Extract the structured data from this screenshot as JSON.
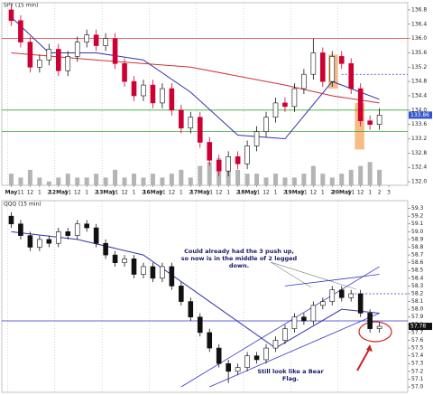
{
  "chart_data": [
    {
      "type": "candlestick",
      "title": "SPY (15 min)",
      "xlim": [
        0,
        43
      ],
      "xticks": [
        {
          "value": 1,
          "label": "May"
        },
        {
          "value": 2,
          "label": "11"
        },
        {
          "value": 3,
          "label": "12"
        },
        {
          "value": 4,
          "label": "1"
        },
        {
          "value": 5,
          "label": "2"
        },
        {
          "value": 6,
          "label": "12May"
        },
        {
          "value": 7,
          "label": "11"
        },
        {
          "value": 8,
          "label": "12"
        },
        {
          "value": 9,
          "label": "1"
        },
        {
          "value": 10,
          "label": "2"
        },
        {
          "value": 11,
          "label": "13May"
        },
        {
          "value": 12,
          "label": "11"
        },
        {
          "value": 13,
          "label": "12"
        },
        {
          "value": 14,
          "label": "1"
        },
        {
          "value": 15,
          "label": "2"
        },
        {
          "value": 16,
          "label": "16May"
        },
        {
          "value": 17,
          "label": "11"
        },
        {
          "value": 18,
          "label": "12"
        },
        {
          "value": 19,
          "label": "1"
        },
        {
          "value": 20,
          "label": "2"
        },
        {
          "value": 21,
          "label": "17May"
        },
        {
          "value": 22,
          "label": "11"
        },
        {
          "value": 23,
          "label": "12"
        },
        {
          "value": 24,
          "label": "1"
        },
        {
          "value": 25,
          "label": "2"
        },
        {
          "value": 26,
          "label": "18May"
        },
        {
          "value": 27,
          "label": "11"
        },
        {
          "value": 28,
          "label": "12"
        },
        {
          "value": 29,
          "label": "1"
        },
        {
          "value": 30,
          "label": "2"
        },
        {
          "value": 31,
          "label": "19May"
        },
        {
          "value": 32,
          "label": "11"
        },
        {
          "value": 33,
          "label": "12"
        },
        {
          "value": 34,
          "label": "1"
        },
        {
          "value": 35,
          "label": "2"
        },
        {
          "value": 36,
          "label": "20May"
        },
        {
          "value": 37,
          "label": "11"
        },
        {
          "value": 38,
          "label": "12"
        },
        {
          "value": 39,
          "label": "1"
        },
        {
          "value": 40,
          "label": "2"
        },
        {
          "value": 41,
          "label": "3"
        }
      ],
      "ylim": [
        131.9,
        137.0
      ],
      "yticks": [
        {
          "value": 132,
          "label": "132.0"
        },
        132.4,
        132.8,
        133.2,
        133.6,
        {
          "value": 134,
          "label": "134.0"
        },
        134.4,
        134.8,
        135.2,
        135.6,
        {
          "value": 136,
          "label": "136.0"
        },
        136.4,
        136.8
      ],
      "up_color": "#ffffff",
      "down_color": "#cc0033",
      "open": [
        136.8,
        136.5,
        135.9,
        135.2,
        135.4,
        135.7,
        135.1,
        135.5,
        135.9,
        136.1,
        135.8,
        136.0,
        135.3,
        134.8,
        134.4,
        134.7,
        134.2,
        134.6,
        134.0,
        133.5,
        133.8,
        133.1,
        132.6,
        132.3,
        132.7,
        132.5,
        133.0,
        133.4,
        133.8,
        134.2,
        134.1,
        134.6,
        135.0,
        135.6,
        134.8,
        135.5,
        135.3,
        134.6,
        133.7,
        133.6
      ],
      "high": [
        136.95,
        136.65,
        136.05,
        135.55,
        135.85,
        135.85,
        135.65,
        136.05,
        136.25,
        136.25,
        136.15,
        136.15,
        135.45,
        134.95,
        134.85,
        134.85,
        134.75,
        134.75,
        134.15,
        133.95,
        133.95,
        133.25,
        132.75,
        132.85,
        132.85,
        133.15,
        133.55,
        133.95,
        134.35,
        134.35,
        134.75,
        135.15,
        136.0,
        135.75,
        135.65,
        135.65,
        135.45,
        134.75,
        133.85,
        134.05
      ],
      "low": [
        136.35,
        135.75,
        135.05,
        135.05,
        135.25,
        134.95,
        134.95,
        135.35,
        135.75,
        135.65,
        135.65,
        135.15,
        134.65,
        134.25,
        134.25,
        134.05,
        134.05,
        133.85,
        133.35,
        133.35,
        132.95,
        132.45,
        132.15,
        132.15,
        132.35,
        132.35,
        132.85,
        133.25,
        133.65,
        133.95,
        133.95,
        134.45,
        134.85,
        134.65,
        134.65,
        135.15,
        134.45,
        133.55,
        133.45,
        133.45
      ],
      "close": [
        136.5,
        135.9,
        135.2,
        135.4,
        135.7,
        135.1,
        135.5,
        135.9,
        136.1,
        135.8,
        136.0,
        135.3,
        134.8,
        134.4,
        134.7,
        134.2,
        134.6,
        134.0,
        133.5,
        133.8,
        133.1,
        132.6,
        132.3,
        132.7,
        132.5,
        133.0,
        133.4,
        133.8,
        134.2,
        134.1,
        134.6,
        135.0,
        135.6,
        134.8,
        135.5,
        135.3,
        134.6,
        133.7,
        133.6,
        133.86
      ],
      "volume": {
        "color": "#b4b4b4",
        "ylim": [
          0,
          14
        ],
        "values": [
          3,
          2,
          4,
          2,
          1,
          2,
          3,
          2,
          2,
          3,
          2,
          4,
          2,
          3,
          2,
          3,
          2,
          3,
          4,
          2,
          5,
          6,
          7,
          5,
          4,
          3,
          3,
          2,
          3,
          2,
          2,
          3,
          5,
          3,
          2,
          3,
          4,
          5,
          6,
          4
        ]
      },
      "moving_averages": [
        {
          "color": "#3333aa",
          "x": [
            1,
            5,
            10,
            15,
            20,
            25,
            30,
            35,
            40
          ],
          "values": [
            136.6,
            135.6,
            135.6,
            135.4,
            134.5,
            133.3,
            133.2,
            134.8,
            134.3
          ]
        },
        {
          "color": "#cc3333",
          "x": [
            1,
            10,
            20,
            30,
            35,
            40
          ],
          "values": [
            135.6,
            135.4,
            135.2,
            134.7,
            134.4,
            134.2
          ]
        }
      ],
      "hlines": [
        {
          "value": 136.0,
          "color": "#dd3333"
        },
        {
          "value": 134.0,
          "color": "#33aa33"
        },
        {
          "value": 133.4,
          "color": "#33aa33"
        },
        {
          "value": 135.0,
          "color": "#3333cc",
          "dashed": true,
          "from": 36
        }
      ],
      "highlights": [
        {
          "color": "#f4b070",
          "x": [
            34.6,
            35.6
          ],
          "y": [
            134.6,
            135.55
          ]
        },
        {
          "color": "#f4b070",
          "x": [
            37.4,
            38.4
          ],
          "y": [
            132.9,
            134.2
          ]
        }
      ]
    },
    {
      "type": "candlestick",
      "title": "QQQ (15 min)",
      "xlim": [
        0,
        43
      ],
      "ylim": [
        56.93,
        59.4
      ],
      "yticks": [
        {
          "value": 57,
          "label": "57.0"
        },
        57.1,
        57.2,
        57.3,
        57.4,
        57.5,
        57.6,
        57.7,
        57.8,
        57.9,
        {
          "value": 58,
          "label": "58.0"
        },
        58.1,
        58.2,
        58.3,
        58.4,
        58.5,
        58.6,
        58.7,
        58.8,
        58.9,
        {
          "value": 59,
          "label": "59.0"
        },
        59.1,
        59.2,
        59.3
      ],
      "up_color": "#ffffff",
      "down_color": "#111111",
      "open": [
        59.2,
        59.1,
        58.95,
        58.8,
        58.9,
        58.85,
        59.0,
        58.95,
        59.1,
        59.05,
        58.85,
        58.7,
        58.6,
        58.65,
        58.45,
        58.55,
        58.4,
        58.55,
        58.3,
        58.1,
        57.9,
        57.7,
        57.5,
        57.3,
        57.2,
        57.25,
        57.4,
        57.35,
        57.5,
        57.6,
        57.75,
        57.9,
        57.85,
        58.05,
        58.1,
        58.25,
        58.15,
        58.2,
        57.95,
        57.75
      ],
      "high": [
        59.25,
        59.15,
        59.0,
        58.95,
        58.95,
        59.05,
        59.05,
        59.15,
        59.15,
        59.1,
        58.9,
        58.75,
        58.7,
        58.7,
        58.6,
        58.6,
        58.6,
        58.6,
        58.35,
        58.15,
        57.95,
        57.75,
        57.55,
        57.35,
        57.3,
        57.45,
        57.45,
        57.55,
        57.65,
        57.8,
        57.95,
        57.95,
        58.1,
        58.15,
        58.3,
        58.3,
        58.25,
        58.25,
        58.0,
        57.83
      ],
      "low": [
        59.05,
        58.9,
        58.75,
        58.75,
        58.8,
        58.8,
        58.9,
        58.9,
        59.0,
        58.8,
        58.65,
        58.55,
        58.55,
        58.4,
        58.4,
        58.35,
        58.35,
        58.25,
        58.05,
        57.85,
        57.65,
        57.45,
        57.25,
        57.05,
        57.15,
        57.2,
        57.3,
        57.3,
        57.45,
        57.55,
        57.7,
        57.8,
        57.8,
        58.0,
        58.05,
        58.1,
        58.1,
        57.9,
        57.7,
        57.7
      ],
      "close": [
        59.1,
        58.95,
        58.8,
        58.9,
        58.85,
        59.0,
        58.95,
        59.1,
        59.05,
        58.85,
        58.7,
        58.6,
        58.65,
        58.45,
        58.55,
        58.4,
        58.55,
        58.3,
        58.1,
        57.9,
        57.7,
        57.5,
        57.3,
        57.2,
        57.25,
        57.4,
        57.35,
        57.5,
        57.6,
        57.75,
        57.9,
        57.85,
        58.05,
        58.1,
        58.25,
        58.15,
        58.2,
        57.95,
        57.75,
        57.78
      ],
      "moving_averages": [
        {
          "color": "#3333aa",
          "x": [
            1,
            8,
            15,
            22,
            29,
            36,
            40
          ],
          "values": [
            59.0,
            58.9,
            58.7,
            58.1,
            57.5,
            58.0,
            57.95
          ]
        }
      ],
      "hlines": [
        {
          "value": 57.85,
          "color": "#3333cc"
        },
        {
          "value": 58.2,
          "color": "#3333cc",
          "dashed": true,
          "from": 37
        }
      ],
      "trendlines": [
        {
          "color": "#3333cc",
          "x": [
            19,
            40
          ],
          "y": [
            57.0,
            58.55
          ]
        },
        {
          "color": "#3333cc",
          "x": [
            22,
            40
          ],
          "y": [
            57.0,
            57.95
          ]
        },
        {
          "color": "#3333cc",
          "x": [
            30,
            40
          ],
          "y": [
            58.3,
            58.45
          ]
        }
      ],
      "annotations": [
        "Could already had the 3 push up, so now is in the middle of 2 legged down.",
        "Still look like a Bear Flag."
      ]
    }
  ]
}
